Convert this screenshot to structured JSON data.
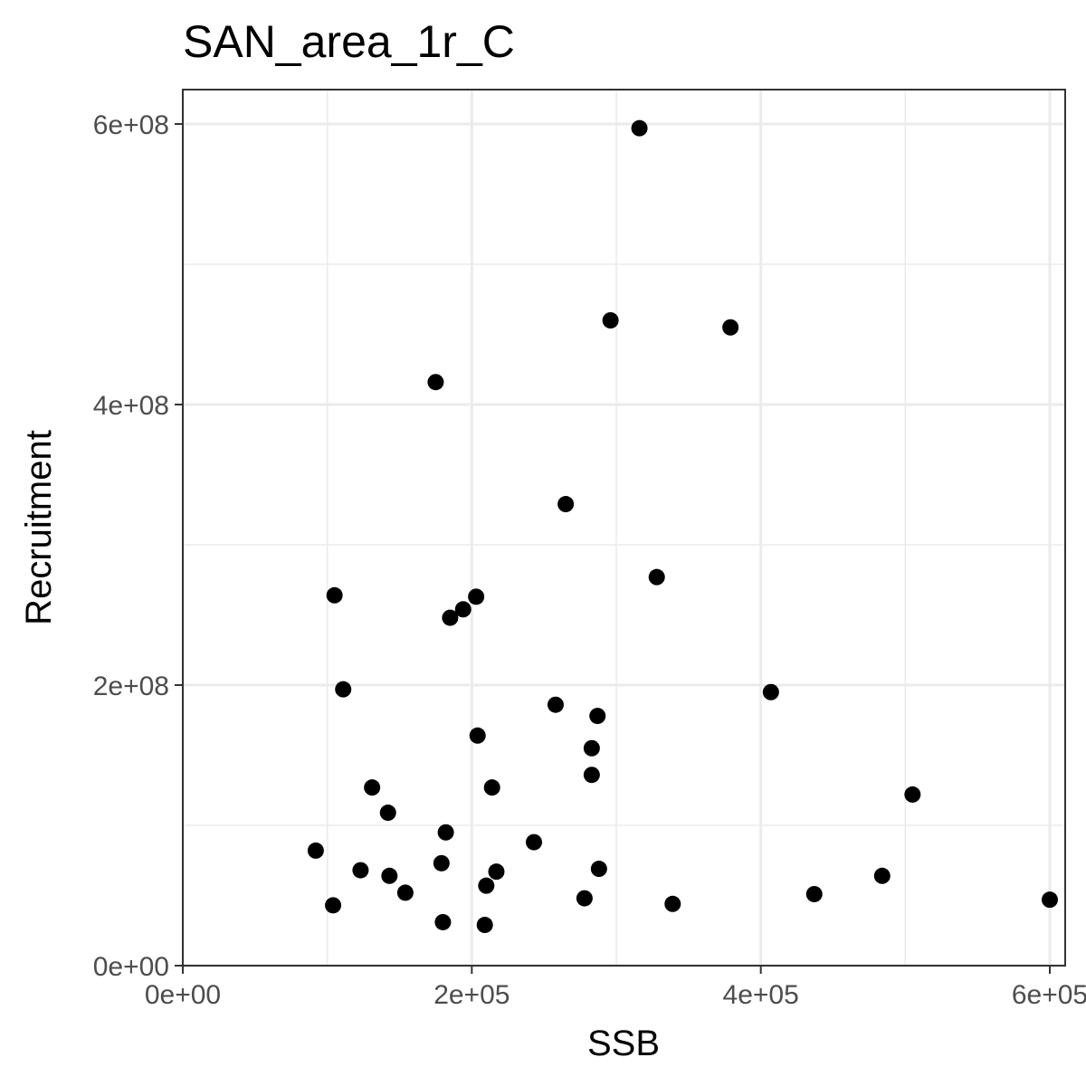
{
  "chart_data": {
    "type": "scatter",
    "title": "SAN_area_1r_C",
    "xlabel": "SSB",
    "ylabel": "Recruitment",
    "xlim": [
      0,
      600000
    ],
    "ylim": [
      0,
      600000000
    ],
    "x_ticks": [
      {
        "value": 0,
        "label": "0e+00"
      },
      {
        "value": 200000,
        "label": "2e+05"
      },
      {
        "value": 400000,
        "label": "4e+05"
      },
      {
        "value": 600000,
        "label": "6e+05"
      }
    ],
    "y_ticks": [
      {
        "value": 0,
        "label": "0e+00"
      },
      {
        "value": 200000000,
        "label": "2e+08"
      },
      {
        "value": 400000000,
        "label": "4e+08"
      },
      {
        "value": 600000000,
        "label": "6e+08"
      }
    ],
    "grid": true,
    "colors": {
      "point": "#000000",
      "grid": "#ebebeb",
      "panel_border": "#333333"
    },
    "points": [
      {
        "x": 316000,
        "y": 597000000
      },
      {
        "x": 296000,
        "y": 460000000
      },
      {
        "x": 379000,
        "y": 455000000
      },
      {
        "x": 175000,
        "y": 416000000
      },
      {
        "x": 265000,
        "y": 329000000
      },
      {
        "x": 328000,
        "y": 277000000
      },
      {
        "x": 105000,
        "y": 264000000
      },
      {
        "x": 203000,
        "y": 263000000
      },
      {
        "x": 194000,
        "y": 254000000
      },
      {
        "x": 185000,
        "y": 248000000
      },
      {
        "x": 111000,
        "y": 197000000
      },
      {
        "x": 407000,
        "y": 195000000
      },
      {
        "x": 258000,
        "y": 186000000
      },
      {
        "x": 287000,
        "y": 178000000
      },
      {
        "x": 204000,
        "y": 164000000
      },
      {
        "x": 283000,
        "y": 155000000
      },
      {
        "x": 283000,
        "y": 136000000
      },
      {
        "x": 131000,
        "y": 127000000
      },
      {
        "x": 214000,
        "y": 127000000
      },
      {
        "x": 505000,
        "y": 122000000
      },
      {
        "x": 142000,
        "y": 109000000
      },
      {
        "x": 182000,
        "y": 95000000
      },
      {
        "x": 243000,
        "y": 88000000
      },
      {
        "x": 92000,
        "y": 82000000
      },
      {
        "x": 179000,
        "y": 73000000
      },
      {
        "x": 288000,
        "y": 69000000
      },
      {
        "x": 123000,
        "y": 68000000
      },
      {
        "x": 217000,
        "y": 67000000
      },
      {
        "x": 143000,
        "y": 64000000
      },
      {
        "x": 484000,
        "y": 64000000
      },
      {
        "x": 210000,
        "y": 57000000
      },
      {
        "x": 154000,
        "y": 52000000
      },
      {
        "x": 437000,
        "y": 51000000
      },
      {
        "x": 278000,
        "y": 48000000
      },
      {
        "x": 600000,
        "y": 47000000
      },
      {
        "x": 339000,
        "y": 44000000
      },
      {
        "x": 104000,
        "y": 43000000
      },
      {
        "x": 180000,
        "y": 31000000
      },
      {
        "x": 209000,
        "y": 29000000
      }
    ]
  }
}
